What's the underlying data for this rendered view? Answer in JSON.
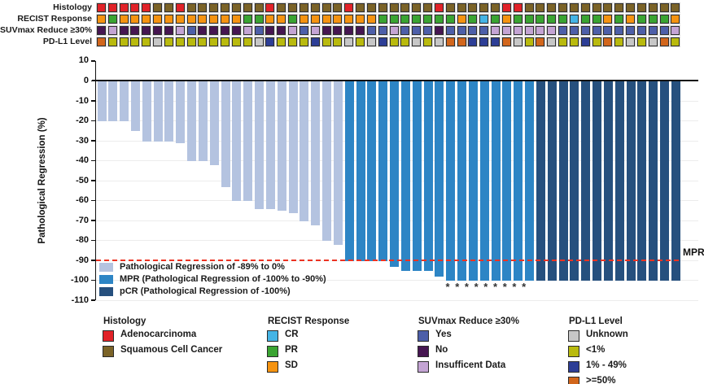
{
  "tracks": {
    "palette": {
      "A": "#e12228",
      "S": "#7b6327",
      "SD": "#f59311",
      "PR": "#3aa432",
      "CR": "#45b4e5",
      "YES": "#4d5fa9",
      "NO": "#461651",
      "INS": "#c4a4d4",
      "UNK": "#c7c7c7",
      "LT1": "#b9ba0e",
      "P1_49": "#2d3e96",
      "GE50": "#d2661c"
    },
    "rows": [
      {
        "id": "histology",
        "label": "Histology",
        "cells": [
          "A",
          "A",
          "A",
          "A",
          "A",
          "S",
          "S",
          "A",
          "S",
          "S",
          "S",
          "S",
          "S",
          "S",
          "S",
          "A",
          "S",
          "S",
          "S",
          "S",
          "S",
          "S",
          "A",
          "S",
          "S",
          "S",
          "S",
          "S",
          "S",
          "S",
          "A",
          "S",
          "S",
          "S",
          "S",
          "S",
          "A",
          "A",
          "S",
          "S",
          "S",
          "S",
          "S",
          "S",
          "S",
          "S",
          "S",
          "S",
          "S",
          "S",
          "S",
          "S"
        ]
      },
      {
        "id": "recist",
        "label": "RECIST Response",
        "cells": [
          "SD",
          "PR",
          "SD",
          "SD",
          "SD",
          "SD",
          "SD",
          "SD",
          "SD",
          "SD",
          "SD",
          "SD",
          "SD",
          "PR",
          "PR",
          "SD",
          "SD",
          "PR",
          "SD",
          "SD",
          "SD",
          "SD",
          "SD",
          "SD",
          "SD",
          "PR",
          "PR",
          "PR",
          "PR",
          "PR",
          "PR",
          "PR",
          "SD",
          "PR",
          "CR",
          "PR",
          "SD",
          "PR",
          "PR",
          "PR",
          "PR",
          "PR",
          "CR",
          "PR",
          "PR",
          "SD",
          "PR",
          "SD",
          "PR",
          "PR",
          "PR",
          "SD"
        ]
      },
      {
        "id": "suvmax",
        "label": "SUVmax Reduce ≥30%",
        "cells": [
          "NO",
          "INS",
          "NO",
          "NO",
          "NO",
          "NO",
          "NO",
          "INS",
          "YES",
          "NO",
          "NO",
          "NO",
          "NO",
          "INS",
          "YES",
          "NO",
          "NO",
          "INS",
          "YES",
          "INS",
          "NO",
          "NO",
          "NO",
          "NO",
          "YES",
          "YES",
          "INS",
          "YES",
          "YES",
          "YES",
          "NO",
          "YES",
          "YES",
          "YES",
          "YES",
          "INS",
          "INS",
          "INS",
          "INS",
          "INS",
          "INS",
          "YES",
          "YES",
          "YES",
          "YES",
          "YES",
          "YES",
          "YES",
          "YES",
          "YES",
          "YES",
          "INS"
        ]
      },
      {
        "id": "pdl1",
        "label": "PD-L1 Level",
        "cells": [
          "GE50",
          "LT1",
          "LT1",
          "LT1",
          "LT1",
          "UNK",
          "LT1",
          "LT1",
          "LT1",
          "LT1",
          "LT1",
          "LT1",
          "LT1",
          "LT1",
          "UNK",
          "P1_49",
          "LT1",
          "LT1",
          "LT1",
          "P1_49",
          "LT1",
          "LT1",
          "UNK",
          "LT1",
          "UNK",
          "P1_49",
          "LT1",
          "LT1",
          "UNK",
          "LT1",
          "UNK",
          "GE50",
          "GE50",
          "P1_49",
          "P1_49",
          "P1_49",
          "GE50",
          "UNK",
          "LT1",
          "GE50",
          "UNK",
          "LT1",
          "LT1",
          "P1_49",
          "LT1",
          "GE50",
          "LT1",
          "UNK",
          "LT1",
          "UNK",
          "GE50",
          "LT1"
        ]
      }
    ]
  },
  "chart_data": {
    "type": "bar",
    "title": "",
    "xlabel": "",
    "ylabel": "Pathological Regression (%)",
    "ylim": [
      -110,
      10
    ],
    "yticks": [
      10,
      0,
      -10,
      -20,
      -30,
      -40,
      -50,
      -60,
      -70,
      -80,
      -90,
      -100,
      -110
    ],
    "grid": true,
    "series": [
      {
        "name": "Pathological Regression (%)",
        "values": [
          -20,
          -20,
          -20,
          -25,
          -30,
          -30,
          -30,
          -31,
          -40,
          -40,
          -42,
          -53,
          -60,
          -60,
          -64,
          -64,
          -65,
          -66,
          -70,
          -72,
          -80,
          -82,
          -90,
          -90,
          -90,
          -90,
          -93,
          -95,
          -95,
          -95,
          -98,
          -100,
          -100,
          -100,
          -100,
          -100,
          -100,
          -100,
          -100,
          -100,
          -100,
          -100,
          -100,
          -100,
          -100,
          -100,
          -100,
          -100,
          -100,
          -100,
          -100,
          -100
        ]
      }
    ],
    "bar_categories": [
      "REG",
      "REG",
      "REG",
      "REG",
      "REG",
      "REG",
      "REG",
      "REG",
      "REG",
      "REG",
      "REG",
      "REG",
      "REG",
      "REG",
      "REG",
      "REG",
      "REG",
      "REG",
      "REG",
      "REG",
      "REG",
      "REG",
      "MPR",
      "MPR",
      "MPR",
      "MPR",
      "MPR",
      "MPR",
      "MPR",
      "MPR",
      "MPR",
      "MPR",
      "MPR",
      "MPR",
      "MPR",
      "MPR",
      "MPR",
      "MPR",
      "MPR",
      "PCR",
      "PCR",
      "PCR",
      "PCR",
      "PCR",
      "PCR",
      "PCR",
      "PCR",
      "PCR",
      "PCR",
      "PCR",
      "PCR",
      "PCR"
    ],
    "category_colors": {
      "REG": "#b4c3e0",
      "MPR": "#2d85c5",
      "PCR": "#26507e"
    },
    "legend_position": "lower-left inside plot",
    "legend": [
      {
        "key": "REG",
        "label": "Pathological Regression of -89% to 0%"
      },
      {
        "key": "MPR",
        "label": "MPR (Pathological Regression of -100% to -90%)"
      },
      {
        "key": "PCR",
        "label": "pCR (Pathological Regression of -100%)"
      }
    ],
    "reference_line": {
      "y": -90,
      "label": "MPR",
      "color": "#ec3323",
      "style": "dashed"
    },
    "asterisks": {
      "symbol": "*",
      "count": 9,
      "first_bar_index": 30
    }
  },
  "bottom_legend": [
    {
      "title": "Histology",
      "items": [
        {
          "label": "Adenocarcinoma",
          "color": "#e12228"
        },
        {
          "label": "Squamous Cell Cancer",
          "color": "#7b6327"
        }
      ]
    },
    {
      "title": "RECIST Response",
      "items": [
        {
          "label": "CR",
          "color": "#45b4e5"
        },
        {
          "label": "PR",
          "color": "#3aa432"
        },
        {
          "label": "SD",
          "color": "#f59311"
        }
      ]
    },
    {
      "title": "SUVmax Reduce ≥30%",
      "items": [
        {
          "label": "Yes",
          "color": "#4d5fa9"
        },
        {
          "label": "No",
          "color": "#461651"
        },
        {
          "label": "Insufficent Data",
          "color": "#c4a4d4"
        }
      ]
    },
    {
      "title": "PD-L1 Level",
      "items": [
        {
          "label": "Unknown",
          "color": "#c7c7c7"
        },
        {
          "label": "<1%",
          "color": "#b9ba0e"
        },
        {
          "label": "1% - 49%",
          "color": "#2d3e96"
        },
        {
          "label": ">=50%",
          "color": "#d2661c"
        }
      ]
    }
  ]
}
